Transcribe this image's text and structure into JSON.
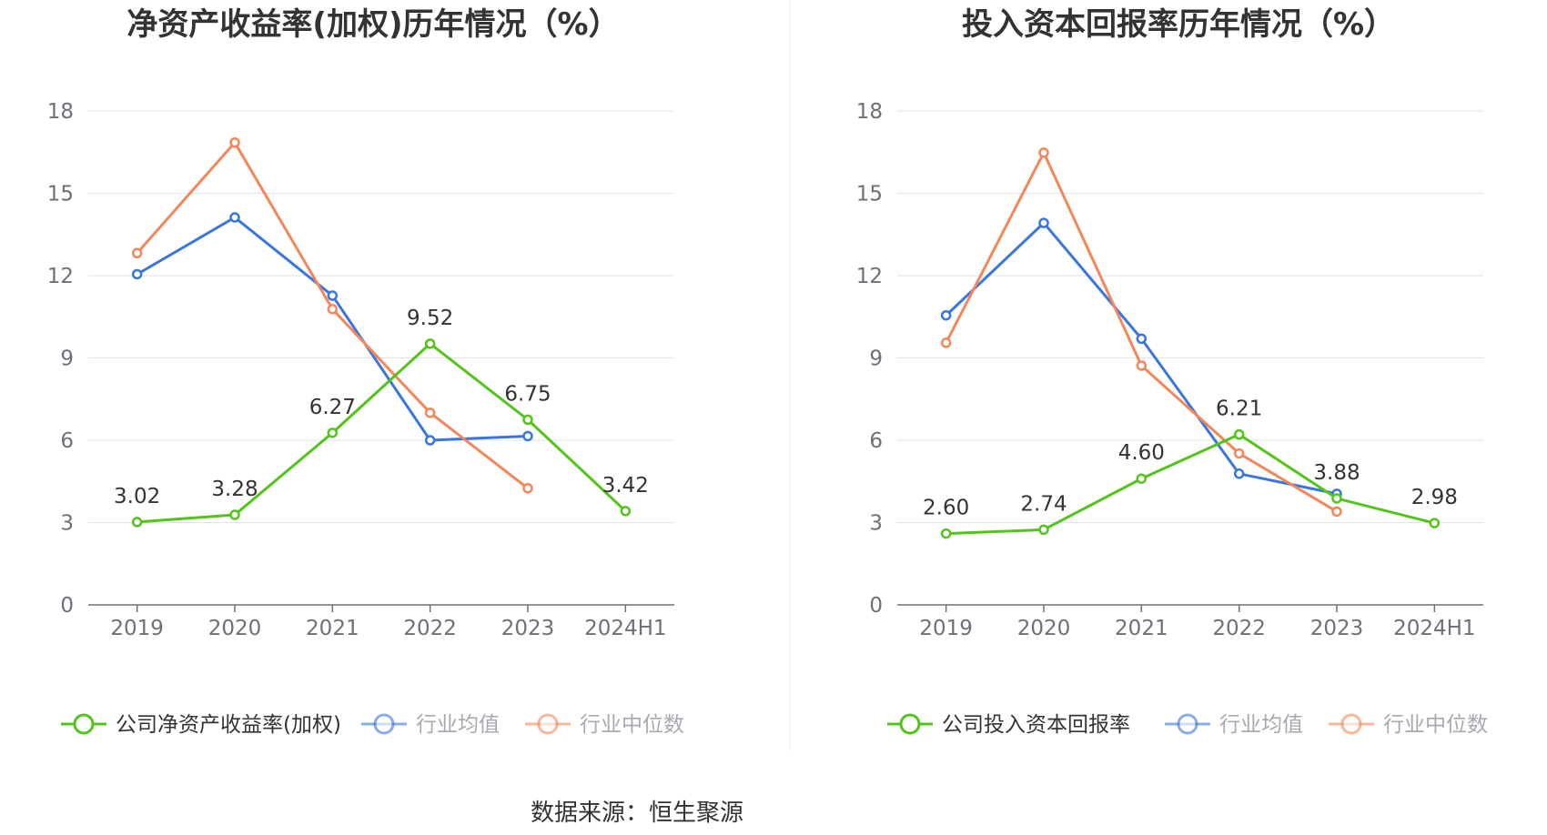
{
  "chart_data": [
    {
      "type": "line",
      "title": "净资产收益率(加权)历年情况（%）",
      "categories": [
        "2019",
        "2020",
        "2021",
        "2022",
        "2023",
        "2024H1"
      ],
      "ylim": [
        0,
        18
      ],
      "yticks": [
        0,
        3,
        6,
        9,
        12,
        15,
        18
      ],
      "grid": true,
      "legend_position": "bottom",
      "series": [
        {
          "name": "公司净资产收益率(加权)",
          "color": "#52c41a",
          "values": [
            3.02,
            3.28,
            6.27,
            9.52,
            6.75,
            3.42
          ],
          "labels": [
            "3.02",
            "3.28",
            "6.27",
            "9.52",
            "6.75",
            "3.42"
          ]
        },
        {
          "name": "行业均值",
          "color": "#3a76e0",
          "values": [
            12.05,
            14.12,
            11.27,
            6.0,
            6.15,
            null
          ]
        },
        {
          "name": "行业中位数",
          "color": "#f5865a",
          "values": [
            12.82,
            16.85,
            10.78,
            7.0,
            4.25,
            null
          ]
        }
      ]
    },
    {
      "type": "line",
      "title": "投入资本回报率历年情况（%）",
      "categories": [
        "2019",
        "2020",
        "2021",
        "2022",
        "2023",
        "2024H1"
      ],
      "ylim": [
        0,
        18
      ],
      "yticks": [
        0,
        3,
        6,
        9,
        12,
        15,
        18
      ],
      "grid": true,
      "legend_position": "bottom",
      "series": [
        {
          "name": "公司投入资本回报率",
          "color": "#52c41a",
          "values": [
            2.6,
            2.74,
            4.6,
            6.21,
            3.88,
            2.98
          ],
          "labels": [
            "2.60",
            "2.74",
            "4.60",
            "6.21",
            "3.88",
            "2.98"
          ]
        },
        {
          "name": "行业均值",
          "color": "#3a76e0",
          "values": [
            10.55,
            13.92,
            9.7,
            4.78,
            4.05,
            null
          ]
        },
        {
          "name": "行业中位数",
          "color": "#f5865a",
          "values": [
            9.55,
            16.48,
            8.72,
            5.52,
            3.4,
            null
          ]
        }
      ]
    }
  ],
  "source_text": "数据来源：恒生聚源",
  "colors": {
    "grid": "#e0e3ee",
    "axis": "#6e7079",
    "divider": "#eeeeee"
  }
}
